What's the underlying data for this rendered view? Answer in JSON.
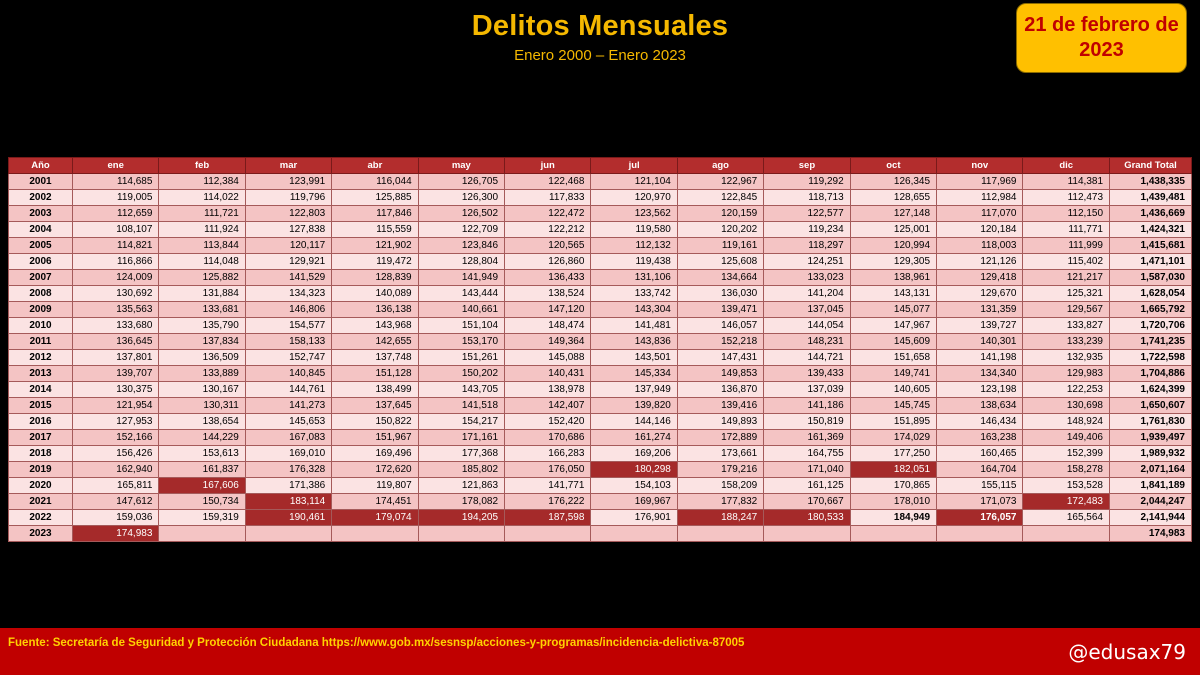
{
  "chart_data": {
    "type": "table",
    "title": "Delitos Mensuales",
    "subtitle": "Enero 2000 – Enero 2023",
    "date": "21 de febrero de 2023",
    "columns": [
      "Año",
      "ene",
      "feb",
      "mar",
      "abr",
      "may",
      "jun",
      "jul",
      "ago",
      "sep",
      "oct",
      "nov",
      "dic",
      "Grand Total"
    ],
    "rows": [
      [
        "2001",
        "114,685",
        "112,384",
        "123,991",
        "116,044",
        "126,705",
        "122,468",
        "121,104",
        "122,967",
        "119,292",
        "126,345",
        "117,969",
        "114,381",
        "1,438,335"
      ],
      [
        "2002",
        "119,005",
        "114,022",
        "119,796",
        "125,885",
        "126,300",
        "117,833",
        "120,970",
        "122,845",
        "118,713",
        "128,655",
        "112,984",
        "112,473",
        "1,439,481"
      ],
      [
        "2003",
        "112,659",
        "111,721",
        "122,803",
        "117,846",
        "126,502",
        "122,472",
        "123,562",
        "120,159",
        "122,577",
        "127,148",
        "117,070",
        "112,150",
        "1,436,669"
      ],
      [
        "2004",
        "108,107",
        "111,924",
        "127,838",
        "115,559",
        "122,709",
        "122,212",
        "119,580",
        "120,202",
        "119,234",
        "125,001",
        "120,184",
        "111,771",
        "1,424,321"
      ],
      [
        "2005",
        "114,821",
        "113,844",
        "120,117",
        "121,902",
        "123,846",
        "120,565",
        "112,132",
        "119,161",
        "118,297",
        "120,994",
        "118,003",
        "111,999",
        "1,415,681"
      ],
      [
        "2006",
        "116,866",
        "114,048",
        "129,921",
        "119,472",
        "128,804",
        "126,860",
        "119,438",
        "125,608",
        "124,251",
        "129,305",
        "121,126",
        "115,402",
        "1,471,101"
      ],
      [
        "2007",
        "124,009",
        "125,882",
        "141,529",
        "128,839",
        "141,949",
        "136,433",
        "131,106",
        "134,664",
        "133,023",
        "138,961",
        "129,418",
        "121,217",
        "1,587,030"
      ],
      [
        "2008",
        "130,692",
        "131,884",
        "134,323",
        "140,089",
        "143,444",
        "138,524",
        "133,742",
        "136,030",
        "141,204",
        "143,131",
        "129,670",
        "125,321",
        "1,628,054"
      ],
      [
        "2009",
        "135,563",
        "133,681",
        "146,806",
        "136,138",
        "140,661",
        "147,120",
        "143,304",
        "139,471",
        "137,045",
        "145,077",
        "131,359",
        "129,567",
        "1,665,792"
      ],
      [
        "2010",
        "133,680",
        "135,790",
        "154,577",
        "143,968",
        "151,104",
        "148,474",
        "141,481",
        "146,057",
        "144,054",
        "147,967",
        "139,727",
        "133,827",
        "1,720,706"
      ],
      [
        "2011",
        "136,645",
        "137,834",
        "158,133",
        "142,655",
        "153,170",
        "149,364",
        "143,836",
        "152,218",
        "148,231",
        "145,609",
        "140,301",
        "133,239",
        "1,741,235"
      ],
      [
        "2012",
        "137,801",
        "136,509",
        "152,747",
        "137,748",
        "151,261",
        "145,088",
        "143,501",
        "147,431",
        "144,721",
        "151,658",
        "141,198",
        "132,935",
        "1,722,598"
      ],
      [
        "2013",
        "139,707",
        "133,889",
        "140,845",
        "151,128",
        "150,202",
        "140,431",
        "145,334",
        "149,853",
        "139,433",
        "149,741",
        "134,340",
        "129,983",
        "1,704,886"
      ],
      [
        "2014",
        "130,375",
        "130,167",
        "144,761",
        "138,499",
        "143,705",
        "138,978",
        "137,949",
        "136,870",
        "137,039",
        "140,605",
        "123,198",
        "122,253",
        "1,624,399"
      ],
      [
        "2015",
        "121,954",
        "130,311",
        "141,273",
        "137,645",
        "141,518",
        "142,407",
        "139,820",
        "139,416",
        "141,186",
        "145,745",
        "138,634",
        "130,698",
        "1,650,607"
      ],
      [
        "2016",
        "127,953",
        "138,654",
        "145,653",
        "150,822",
        "154,217",
        "152,420",
        "144,146",
        "149,893",
        "150,819",
        "151,895",
        "146,434",
        "148,924",
        "1,761,830"
      ],
      [
        "2017",
        "152,166",
        "144,229",
        "167,083",
        "151,967",
        "171,161",
        "170,686",
        "161,274",
        "172,889",
        "161,369",
        "174,029",
        "163,238",
        "149,406",
        "1,939,497"
      ],
      [
        "2018",
        "156,426",
        "153,613",
        "169,010",
        "169,496",
        "177,368",
        "166,283",
        "169,206",
        "173,661",
        "164,755",
        "177,250",
        "160,465",
        "152,399",
        "1,989,932"
      ],
      [
        "2019",
        "162,940",
        "161,837",
        "176,328",
        "172,620",
        "185,802",
        "176,050",
        "180,298",
        "179,216",
        "171,040",
        "182,051",
        "164,704",
        "158,278",
        "2,071,164"
      ],
      [
        "2020",
        "165,811",
        "167,606",
        "171,386",
        "119,807",
        "121,863",
        "141,771",
        "154,103",
        "158,209",
        "161,125",
        "170,865",
        "155,115",
        "153,528",
        "1,841,189"
      ],
      [
        "2021",
        "147,612",
        "150,734",
        "183,114",
        "174,451",
        "178,082",
        "176,222",
        "169,967",
        "177,832",
        "170,667",
        "178,010",
        "171,073",
        "172,483",
        "2,044,247"
      ],
      [
        "2022",
        "159,036",
        "159,319",
        "190,461",
        "179,074",
        "194,205",
        "187,598",
        "176,901",
        "188,247",
        "180,533",
        "184,949",
        "176,057",
        "165,564",
        "2,141,944"
      ],
      [
        "2023",
        "174,983",
        "",
        "",
        "",
        "",
        "",
        "",
        "",
        "",
        "",
        "",
        "",
        "174,983"
      ]
    ],
    "highlight_color": "#a52a2a",
    "header_color": "#b32d2d"
  },
  "footer": {
    "source": "Fuente: Secretaría de Seguridad y Protección Ciudadana https://www.gob.mx/sesnsp/acciones-y-programas/incidencia-delictiva-87005",
    "handle": "@edusax79"
  },
  "colors": {
    "title": "#f5b800",
    "date_box_bg": "#ffc000",
    "date_text": "#c00000",
    "footer_bg": "#c00000",
    "footer_text": "#ffd200"
  }
}
